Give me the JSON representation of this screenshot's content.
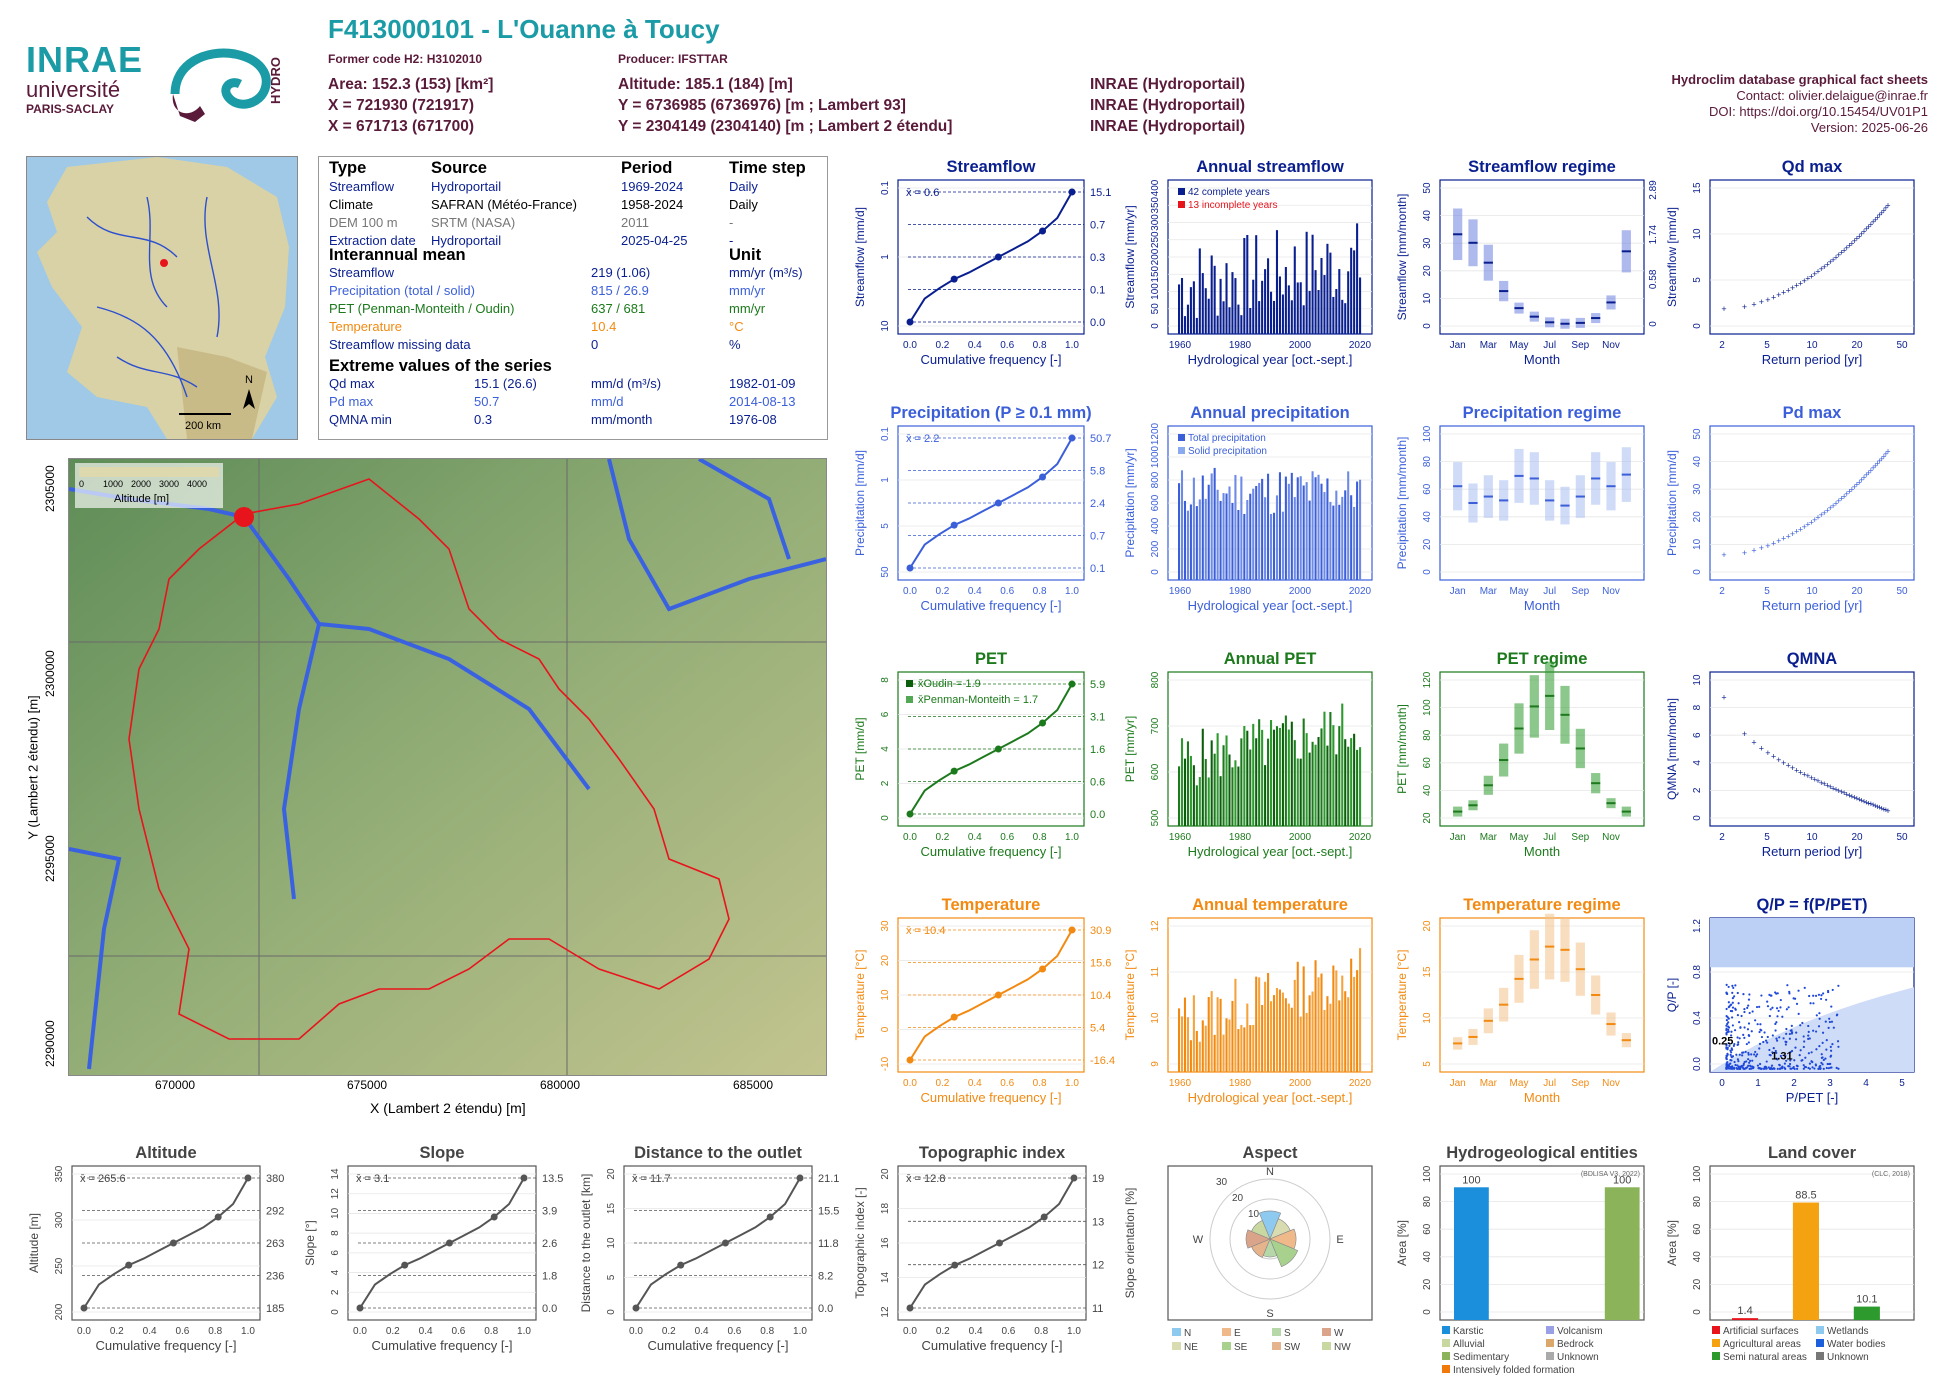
{
  "header": {
    "title": "F413000101 - L'Ouanne à Toucy",
    "former_code": "Former code H2: H3102010",
    "producer": "Producer: IFSTTAR",
    "col1": [
      "Area: 152.3 (153) [km²]",
      "X = 721930 (721917)",
      "X = 671713 (671700)"
    ],
    "col2": [
      "Altitude: 185.1 (184) [m]",
      "Y = 6736985 (6736976) [m ; Lambert 93]",
      "Y = 2304149 (2304140) [m ; Lambert 2 étendu]"
    ],
    "col3": [
      "INRAE (Hydroportail)",
      "INRAE (Hydroportail)",
      "INRAE (Hydroportail)"
    ],
    "db_title": "Hydroclim database graphical fact sheets",
    "contact": "Contact: olivier.delaigue@inrae.fr",
    "doi": "DOI: https://doi.org/10.15454/UV01P1",
    "version": "Version: 2025-06-26"
  },
  "logos": {
    "inrae": "INRAE",
    "univ": "université",
    "univ2": "PARIS-SACLAY",
    "hydro": "HYDRO"
  },
  "colors": {
    "streamflow": "#0a1f8f",
    "precip": "#3b5fd9",
    "pet": "#1c7a1c",
    "temp": "#f28a12",
    "header": "#5a1a3a",
    "teal": "#1a9ba6",
    "red": "#e8141c"
  },
  "table": {
    "headers": [
      "Type",
      "Source",
      "Period",
      "Time step"
    ],
    "rows": [
      {
        "type": "Streamflow",
        "source": "Hydroportail",
        "period": "1969-2024",
        "step": "Daily",
        "color": "#0a1f8f"
      },
      {
        "type": "Climate",
        "source": "SAFRAN (Météo-France)",
        "period": "1958-2024",
        "step": "Daily",
        "color": "#000000"
      },
      {
        "type": "DEM 100 m",
        "source": "SRTM (NASA)",
        "period": "2011",
        "step": "-",
        "color": "#777777"
      },
      {
        "type": "Extraction date",
        "source": "Hydroportail",
        "period": "2025-04-25",
        "step": "-",
        "color": "#0a1f8f"
      }
    ],
    "interannual_title": "Interannual mean",
    "unit_title": "Unit",
    "means": [
      {
        "label": "Streamflow",
        "value": "219 (1.06)",
        "unit": "mm/yr (m³/s)",
        "color": "#0a1f8f"
      },
      {
        "label": "Precipitation (total / solid)",
        "value": "815 / 26.9",
        "unit": "mm/yr",
        "color": "#3b5fd9"
      },
      {
        "label": "PET (Penman-Monteith / Oudin)",
        "value": "637 / 681",
        "unit": "mm/yr",
        "color": "#1c7a1c"
      },
      {
        "label": "Temperature",
        "value": "10.4",
        "unit": "°C",
        "color": "#f28a12"
      },
      {
        "label": "Streamflow missing data",
        "value": "0",
        "unit": "%",
        "color": "#0a1f8f"
      }
    ],
    "extreme_title": "Extreme values of the series",
    "extremes": [
      {
        "label": "Qd max",
        "value": "15.1 (26.6)",
        "unit": "mm/d (m³/s)",
        "date": "1982-01-09",
        "color": "#0a1f8f"
      },
      {
        "label": "Pd max",
        "value": "50.7",
        "unit": "mm/d",
        "date": "2014-08-13",
        "color": "#3b5fd9"
      },
      {
        "label": "QMNA min",
        "value": "0.3",
        "unit": "mm/month",
        "date": "1976-08",
        "color": "#0a1f8f"
      }
    ]
  },
  "small_map": {
    "scale": "200 km",
    "north": "N"
  },
  "big_map": {
    "legend_title": "Altitude [m]",
    "legend_ticks": [
      "0",
      "1000",
      "2000",
      "3000",
      "4000"
    ],
    "xlabel": "X (Lambert 2 étendu) [m]",
    "ylabel": "Y (Lambert 2 étendu) [m]",
    "xticks": [
      "670000",
      "675000",
      "680000",
      "685000"
    ],
    "yticks": [
      "2305000",
      "2300000",
      "2295000",
      "2290000"
    ]
  },
  "chart_data": [
    {
      "id": "streamflow_cdf",
      "type": "line",
      "title": "Streamflow",
      "xlabel": "Cumulative frequency [-]",
      "ylabel": "Streamflow [mm/d]",
      "scale": "log",
      "ylim": [
        0.01,
        20
      ],
      "mean_label": "x̄ = 0.6",
      "points": [
        [
          0,
          0.01
        ],
        [
          0.25,
          0.1
        ],
        [
          0.5,
          0.3
        ],
        [
          0.75,
          0.7
        ],
        [
          1.0,
          15.1
        ]
      ],
      "right_ticks": [
        "15.1",
        "0.7",
        "0.3",
        "0.1",
        "0.0"
      ],
      "left_ticks": [
        "10",
        "1",
        "0.1"
      ]
    },
    {
      "id": "annual_streamflow",
      "type": "bar",
      "title": "Annual streamflow",
      "xlabel": "Hydrological year [oct.-sept.]",
      "ylabel": "Streamflow [mm/yr]",
      "ylim": [
        0,
        420
      ],
      "legend": [
        "42 complete years",
        "13 incomplete years"
      ],
      "xticks": [
        "1960",
        "1980",
        "2000",
        "2020"
      ],
      "yticks": [
        "0",
        "50",
        "100",
        "150",
        "200",
        "250",
        "300",
        "350",
        "400"
      ]
    },
    {
      "id": "streamflow_regime",
      "type": "bar",
      "title": "Streamflow regime",
      "xlabel": "Month",
      "ylabel": "Streamflow [mm/month]",
      "categories": [
        "Jan",
        "Feb",
        "Mar",
        "Apr",
        "May",
        "Jun",
        "Jul",
        "Aug",
        "Sep",
        "Oct",
        "Nov",
        "Dec"
      ],
      "median": [
        33,
        30,
        23,
        13,
        7,
        4,
        2,
        1.5,
        1.8,
        3.5,
        9,
        27
      ],
      "right_ticks": [
        "2.89",
        "1.74",
        "0.58",
        "0"
      ],
      "yticks": [
        "0",
        "10",
        "20",
        "30",
        "40",
        "50"
      ]
    },
    {
      "id": "qd_max",
      "type": "scatter",
      "title": "Qd max",
      "xlabel": "Return period [yr]",
      "ylabel": "Streamflow [mm/d]",
      "xticks": [
        "2",
        "5",
        "10",
        "20",
        "50"
      ],
      "yticks": [
        "0",
        "5",
        "10",
        "15"
      ]
    },
    {
      "id": "precip_cdf",
      "type": "line",
      "title": "Precipitation (P ≥ 0.1 mm)",
      "xlabel": "Cumulative frequency [-]",
      "ylabel": "Precipitation [mm/d]",
      "mean_label": "x̄ = 2.2",
      "right_ticks": [
        "50.7",
        "5.8",
        "2.4",
        "0.7",
        "0.1"
      ],
      "left_ticks": [
        "50",
        "5",
        "1",
        "0.1"
      ]
    },
    {
      "id": "annual_precip",
      "type": "bar",
      "title": "Annual precipitation",
      "xlabel": "Hydrological year [oct.-sept.]",
      "ylabel": "Precipitation [mm/yr]",
      "legend": [
        "Total precipitation",
        "Solid precipitation"
      ],
      "xticks": [
        "1960",
        "1980",
        "2000",
        "2020"
      ],
      "yticks": [
        "0",
        "200",
        "400",
        "600",
        "800",
        "1000",
        "1200"
      ]
    },
    {
      "id": "precip_regime",
      "type": "bar",
      "title": "Precipitation regime",
      "xlabel": "Month",
      "ylabel": "Precipitation [mm/month]",
      "categories": [
        "Jan",
        "Feb",
        "Mar",
        "Apr",
        "May",
        "Jun",
        "Jul",
        "Aug",
        "Sep",
        "Oct",
        "Nov",
        "Dec"
      ],
      "median": [
        68,
        55,
        60,
        57,
        76,
        74,
        57,
        53,
        60,
        74,
        68,
        77
      ],
      "yticks": [
        "0",
        "20",
        "40",
        "60",
        "80",
        "100"
      ]
    },
    {
      "id": "pd_max",
      "type": "scatter",
      "title": "Pd max",
      "xlabel": "Return period [yr]",
      "ylabel": "Precipitation [mm/d]",
      "xticks": [
        "2",
        "5",
        "10",
        "20",
        "50"
      ],
      "yticks": [
        "0",
        "10",
        "20",
        "30",
        "40",
        "50"
      ]
    },
    {
      "id": "pet_cdf",
      "type": "line",
      "title": "PET",
      "xlabel": "Cumulative frequency [-]",
      "ylabel": "PET [mm/d]",
      "mean_labels": [
        "x̄Oudin = 1.9",
        "x̄Penman-Monteith = 1.7"
      ],
      "right_ticks": [
        "5.9",
        "3.1",
        "1.6",
        "0.6",
        "0.0"
      ],
      "left_ticks": [
        "0",
        "2",
        "4",
        "6",
        "8"
      ]
    },
    {
      "id": "annual_pet",
      "type": "bar",
      "title": "Annual PET",
      "xlabel": "Hydrological year [oct.-sept.]",
      "ylabel": "PET [mm/yr]",
      "xticks": [
        "1960",
        "1980",
        "2000",
        "2020"
      ],
      "yticks": [
        "500",
        "600",
        "700",
        "800"
      ]
    },
    {
      "id": "pet_regime",
      "type": "bar",
      "title": "PET regime",
      "xlabel": "Month",
      "ylabel": "PET [mm/month]",
      "categories": [
        "Jan",
        "Feb",
        "Mar",
        "Apr",
        "May",
        "Jun",
        "Jul",
        "Aug",
        "Sep",
        "Oct",
        "Nov",
        "Dec"
      ],
      "median": [
        8,
        14,
        33,
        57,
        87,
        108,
        118,
        100,
        68,
        35,
        16,
        8
      ],
      "yticks": [
        "20",
        "40",
        "60",
        "80",
        "100",
        "120"
      ]
    },
    {
      "id": "qmna",
      "type": "scatter",
      "title": "QMNA",
      "xlabel": "Return period [yr]",
      "ylabel": "QMNA [mm/month]",
      "xticks": [
        "2",
        "5",
        "10",
        "20",
        "50"
      ],
      "yticks": [
        "0",
        "2",
        "4",
        "6",
        "8",
        "10"
      ]
    },
    {
      "id": "temp_cdf",
      "type": "line",
      "title": "Temperature",
      "xlabel": "Cumulative frequency [-]",
      "ylabel": "Temperature [°C]",
      "mean_label": "x̄ = 10.4",
      "right_ticks": [
        "30.9",
        "15.6",
        "10.4",
        "5.4",
        "-16.4"
      ],
      "left_ticks": [
        "-10",
        "0",
        "10",
        "20",
        "30"
      ]
    },
    {
      "id": "annual_temp",
      "type": "bar",
      "title": "Annual temperature",
      "xlabel": "Hydrological year [oct.-sept.]",
      "ylabel": "Temperature [°C]",
      "xticks": [
        "1960",
        "1980",
        "2000",
        "2020"
      ],
      "yticks": [
        "9",
        "10",
        "11",
        "12"
      ]
    },
    {
      "id": "temp_regime",
      "type": "bar",
      "title": "Temperature regime",
      "xlabel": "Month",
      "ylabel": "Temperature [°C]",
      "categories": [
        "Jan",
        "Feb",
        "Mar",
        "Apr",
        "May",
        "Jun",
        "Jul",
        "Aug",
        "Sep",
        "Oct",
        "Nov",
        "Dec"
      ],
      "median": [
        3.5,
        4.5,
        7,
        9.5,
        13.5,
        16.5,
        18.5,
        18,
        15,
        11,
        6.5,
        4
      ],
      "yticks": [
        "5",
        "10",
        "15",
        "20"
      ]
    },
    {
      "id": "qp_ppet",
      "type": "scatter",
      "title": "Q/P = f(P/PET)",
      "xlabel": "P/PET [-]",
      "ylabel": "Q/P [-]",
      "labels": [
        "0.25",
        "1.31"
      ],
      "xticks": [
        "0",
        "1",
        "2",
        "3",
        "4",
        "5"
      ],
      "yticks": [
        "0.0",
        "0.4",
        "0.8",
        "1.2"
      ]
    },
    {
      "id": "altitude_cdf",
      "type": "line",
      "title": "Altitude",
      "xlabel": "Cumulative frequency [-]",
      "ylabel": "Altitude [m]",
      "mean_label": "x̄ = 265.6",
      "right_ticks": [
        "380",
        "292",
        "263",
        "236",
        "185"
      ],
      "left_ticks": [
        "200",
        "250",
        "300",
        "350"
      ]
    },
    {
      "id": "slope_cdf",
      "type": "line",
      "title": "Slope",
      "xlabel": "Cumulative frequency [-]",
      "ylabel": "Slope [°]",
      "mean_label": "x̄ = 3.1",
      "right_ticks": [
        "13.5",
        "3.9",
        "2.6",
        "1.8",
        "0.0"
      ],
      "left_ticks": [
        "0",
        "2",
        "4",
        "6",
        "8",
        "10",
        "12",
        "14"
      ]
    },
    {
      "id": "distance_cdf",
      "type": "line",
      "title": "Distance to the outlet",
      "xlabel": "Cumulative frequency [-]",
      "ylabel": "Distance to the outlet [km]",
      "mean_label": "x̄ = 11.7",
      "right_ticks": [
        "21.1",
        "15.5",
        "11.8",
        "8.2",
        "0.0"
      ],
      "left_ticks": [
        "0",
        "5",
        "10",
        "15",
        "20"
      ]
    },
    {
      "id": "topo_cdf",
      "type": "line",
      "title": "Topographic index",
      "xlabel": "Cumulative frequency [-]",
      "ylabel": "Topographic index [-]",
      "mean_label": "x̄ = 12.8",
      "right_ticks": [
        "19",
        "13",
        "12",
        "11"
      ],
      "left_ticks": [
        "12",
        "14",
        "16",
        "18",
        "20"
      ]
    },
    {
      "id": "aspect",
      "type": "pie",
      "title": "Aspect",
      "ylabel": "Slope orientation [%]",
      "directions": [
        "N",
        "E",
        "S",
        "W"
      ],
      "rings": [
        "10",
        "20",
        "30"
      ],
      "legend": [
        "N",
        "E",
        "S",
        "W",
        "NE",
        "SE",
        "SW",
        "NW"
      ]
    },
    {
      "id": "hydrogeo",
      "type": "bar",
      "title": "Hydrogeological entities",
      "ylabel": "Area [%]",
      "source": "(BDLISA V3, 2022)",
      "values": [
        100,
        100
      ],
      "legend": [
        "Karstic",
        "Volcanism",
        "Alluvial",
        "Bedrock",
        "Sedimentary",
        "Unknown",
        "Intensively folded formation"
      ],
      "yticks": [
        "0",
        "20",
        "40",
        "60",
        "80",
        "100"
      ]
    },
    {
      "id": "landcover",
      "type": "bar",
      "title": "Land cover",
      "ylabel": "Area [%]",
      "source": "(CLC, 2018)",
      "values": [
        1.4,
        88.5,
        10.1
      ],
      "value_labels": [
        "1.4",
        "88.5",
        "10.1"
      ],
      "legend": [
        "Artificial surfaces",
        "Wetlands",
        "Agricultural areas",
        "Water bodies",
        "Semi natural areas",
        "Unknown"
      ],
      "yticks": [
        "0",
        "20",
        "40",
        "60",
        "80",
        "100"
      ]
    }
  ]
}
